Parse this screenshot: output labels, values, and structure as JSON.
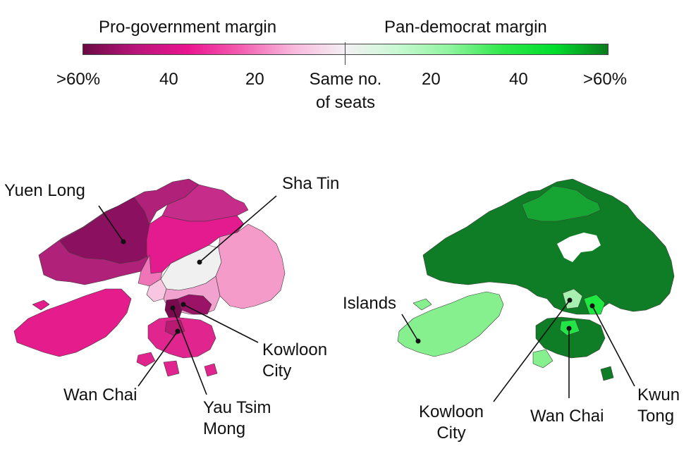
{
  "legend": {
    "left_title": "Pro-government margin",
    "right_title": "Pan-democrat margin",
    "ticks": [
      ">60%",
      "40",
      "20",
      "Same no.",
      "of seats",
      "20",
      "40",
      ">60%"
    ],
    "gradient": [
      "#6b0a44",
      "#b9157a",
      "#ea158f",
      "#f35eb0",
      "#f8b8dc",
      "#f4f0f4",
      "#c8f8d2",
      "#8ef49e",
      "#2ee84a",
      "#00dd2c",
      "#0b7a1e"
    ]
  },
  "map_left": {
    "labels": {
      "yuen_long": "Yuen Long",
      "sha_tin": "Sha Tin",
      "kowloon_city_1": "Kowloon",
      "kowloon_city_2": "City",
      "wan_chai": "Wan Chai",
      "yau_tsim_mong_1": "Yau Tsim",
      "yau_tsim_mong_2": "Mong"
    },
    "colors": {
      "north_west": "#b0227a",
      "yuen_long": "#8c1060",
      "tai_po": "#e31b8e",
      "north": "#c62c89",
      "sha_tin": "#f0f0f0",
      "sai_kung": "#f49bca",
      "tsuen_wan": "#f075b8",
      "kwai_tsing": "#f8c6e0",
      "islands": "#e41c8c",
      "kowloon": "#f2a2ce",
      "yau_tsim_mong": "#7a0a4e",
      "kowloon_city": "#9b1366",
      "hk_island": "#e0258f",
      "wan_chai": "#b81a72"
    }
  },
  "map_right": {
    "labels": {
      "islands": "Islands",
      "kowloon_city_1": "Kowloon",
      "kowloon_city_2": "City",
      "wan_chai": "Wan Chai",
      "kwun_tong_1": "Kwun",
      "kwun_tong_2": "Tong"
    },
    "colors": {
      "new_territories": "#0f7d25",
      "north": "#16a532",
      "islands": "#86f08e",
      "kowloon": "#0f7d25",
      "kowloon_city": "#a8f0b0",
      "kwun_tong": "#1ee840",
      "hk_island": "#0f7d25",
      "wan_chai": "#22e447"
    }
  }
}
